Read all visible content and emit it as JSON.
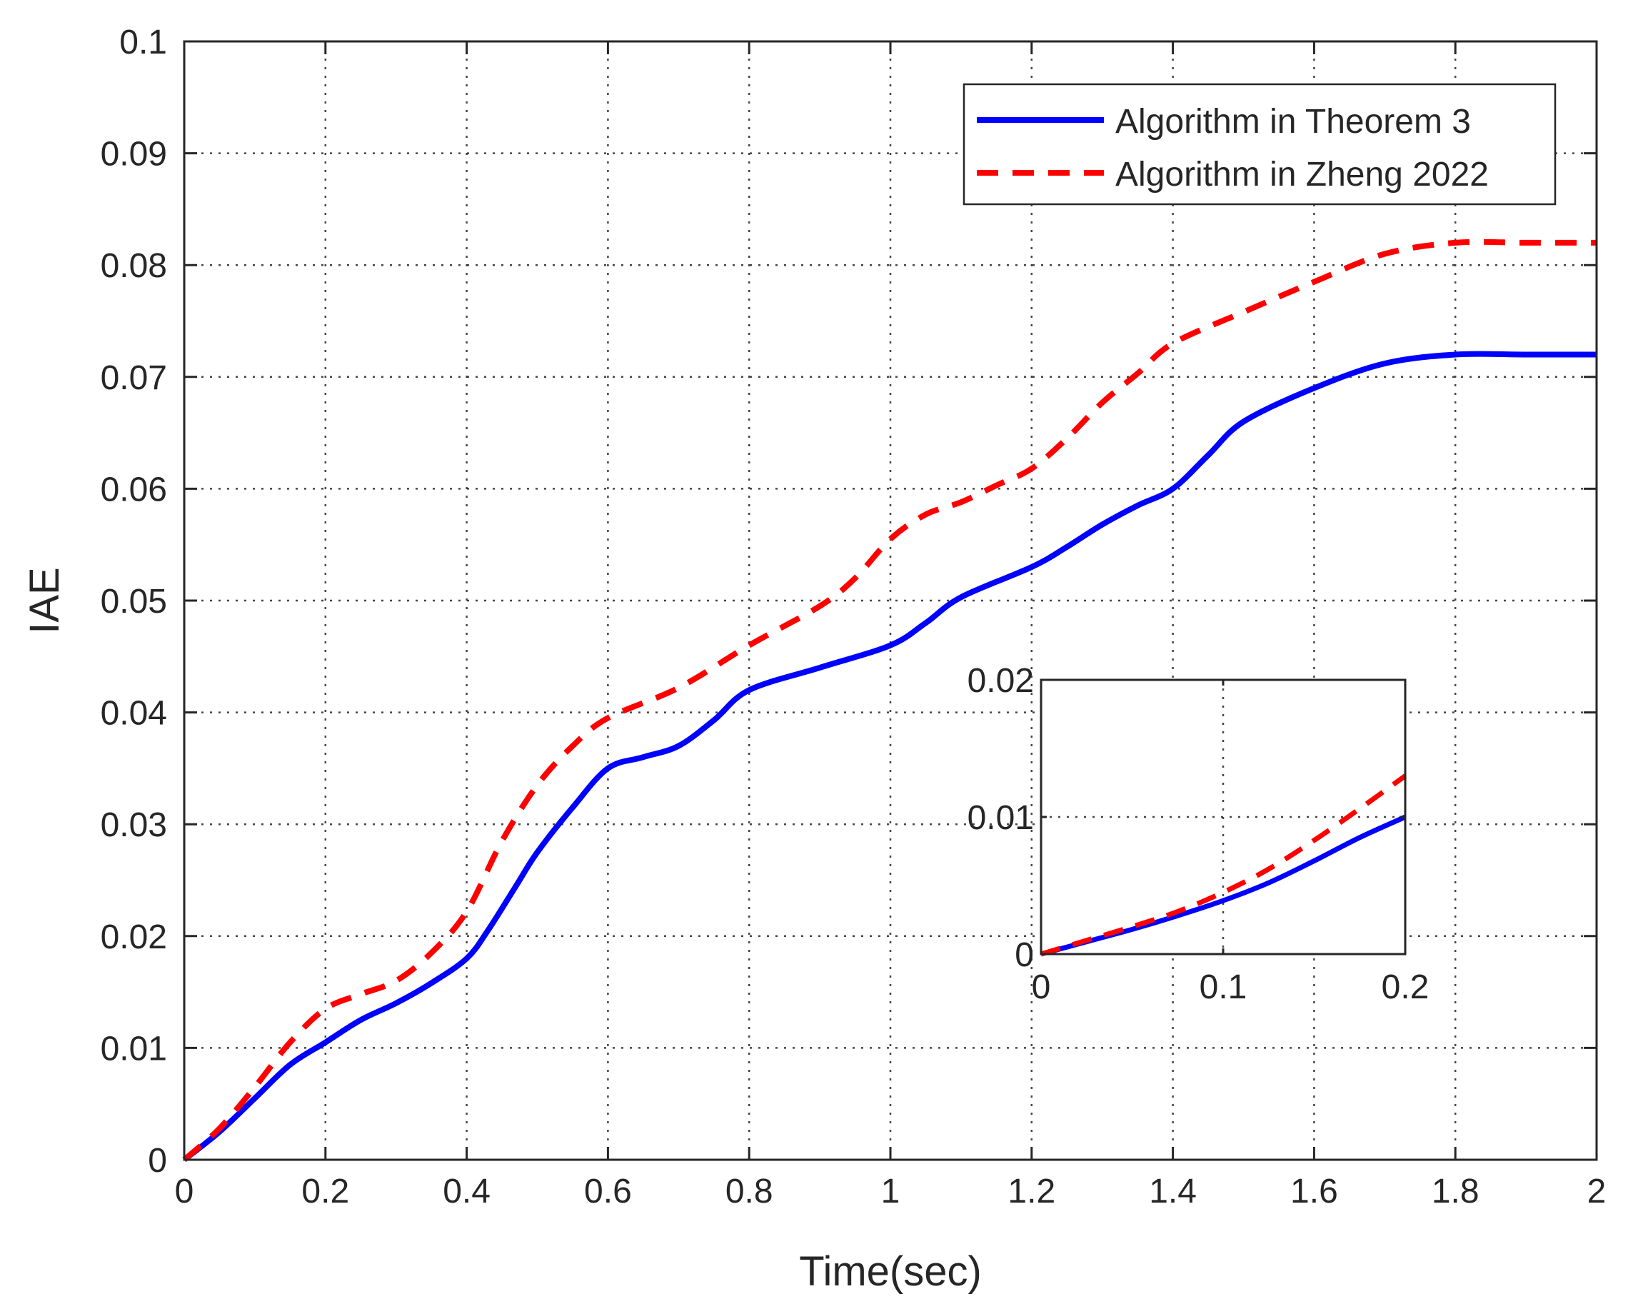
{
  "chart_data": [
    {
      "type": "line",
      "xlabel": "Time(sec)",
      "ylabel": "IAE",
      "xlim": [
        0,
        2
      ],
      "ylim": [
        0,
        0.1
      ],
      "xticks": [
        "0",
        "0.2",
        "0.4",
        "0.6",
        "0.8",
        "1",
        "1.2",
        "1.4",
        "1.6",
        "1.8",
        "2"
      ],
      "yticks": [
        "0",
        "0.01",
        "0.02",
        "0.03",
        "0.04",
        "0.05",
        "0.06",
        "0.07",
        "0.08",
        "0.09",
        "0.1"
      ],
      "grid": true,
      "legend_position": "top-right",
      "series": [
        {
          "name": "Algorithm in Theorem 3",
          "color": "#0000ff",
          "style": "solid",
          "x": [
            0,
            0.05,
            0.1,
            0.15,
            0.2,
            0.25,
            0.3,
            0.35,
            0.4,
            0.43,
            0.47,
            0.5,
            0.55,
            0.6,
            0.65,
            0.7,
            0.75,
            0.8,
            0.9,
            1.0,
            1.05,
            1.1,
            1.2,
            1.25,
            1.3,
            1.35,
            1.4,
            1.45,
            1.5,
            1.6,
            1.7,
            1.8,
            1.9,
            2.0
          ],
          "values": [
            0,
            0.0025,
            0.0055,
            0.0085,
            0.0105,
            0.0125,
            0.014,
            0.0158,
            0.018,
            0.0205,
            0.0245,
            0.0275,
            0.0315,
            0.035,
            0.036,
            0.037,
            0.0393,
            0.042,
            0.044,
            0.046,
            0.048,
            0.0503,
            0.053,
            0.0548,
            0.0568,
            0.0585,
            0.06,
            0.063,
            0.066,
            0.069,
            0.0712,
            0.072,
            0.072,
            0.072
          ]
        },
        {
          "name": "Algorithm in Zheng 2022",
          "color": "#ff0000",
          "style": "dashed",
          "x": [
            0,
            0.05,
            0.1,
            0.15,
            0.2,
            0.25,
            0.3,
            0.35,
            0.4,
            0.45,
            0.5,
            0.55,
            0.6,
            0.7,
            0.8,
            0.9,
            0.95,
            1.0,
            1.05,
            1.1,
            1.15,
            1.2,
            1.25,
            1.3,
            1.35,
            1.4,
            1.5,
            1.6,
            1.7,
            1.8,
            1.9,
            2.0
          ],
          "values": [
            0,
            0.0028,
            0.0065,
            0.0105,
            0.0135,
            0.0148,
            0.016,
            0.0185,
            0.0222,
            0.0285,
            0.0335,
            0.037,
            0.0395,
            0.0422,
            0.046,
            0.0495,
            0.052,
            0.0555,
            0.0577,
            0.0588,
            0.0603,
            0.0618,
            0.0645,
            0.0677,
            0.0703,
            0.073,
            0.0758,
            0.0785,
            0.081,
            0.082,
            0.082,
            0.082
          ]
        }
      ]
    },
    {
      "type": "line",
      "xlabel": "",
      "ylabel": "",
      "xlim": [
        0,
        0.2
      ],
      "ylim": [
        0,
        0.02
      ],
      "xticks": [
        "0",
        "0.1",
        "0.2"
      ],
      "yticks": [
        "0",
        "0.01",
        "0.02"
      ],
      "grid": true,
      "series": [
        {
          "name": "Algorithm in Theorem 3",
          "color": "#0000ff",
          "style": "solid",
          "x": [
            0,
            0.025,
            0.05,
            0.075,
            0.1,
            0.125,
            0.15,
            0.175,
            0.2
          ],
          "values": [
            0,
            0.0009,
            0.0018,
            0.0028,
            0.0039,
            0.0052,
            0.0068,
            0.0085,
            0.01
          ]
        },
        {
          "name": "Algorithm in Zheng 2022",
          "color": "#ff0000",
          "style": "dashed",
          "x": [
            0,
            0.025,
            0.05,
            0.075,
            0.1,
            0.125,
            0.15,
            0.175,
            0.2
          ],
          "values": [
            0,
            0.001,
            0.002,
            0.0031,
            0.0045,
            0.0062,
            0.0083,
            0.0106,
            0.013
          ]
        }
      ]
    }
  ]
}
